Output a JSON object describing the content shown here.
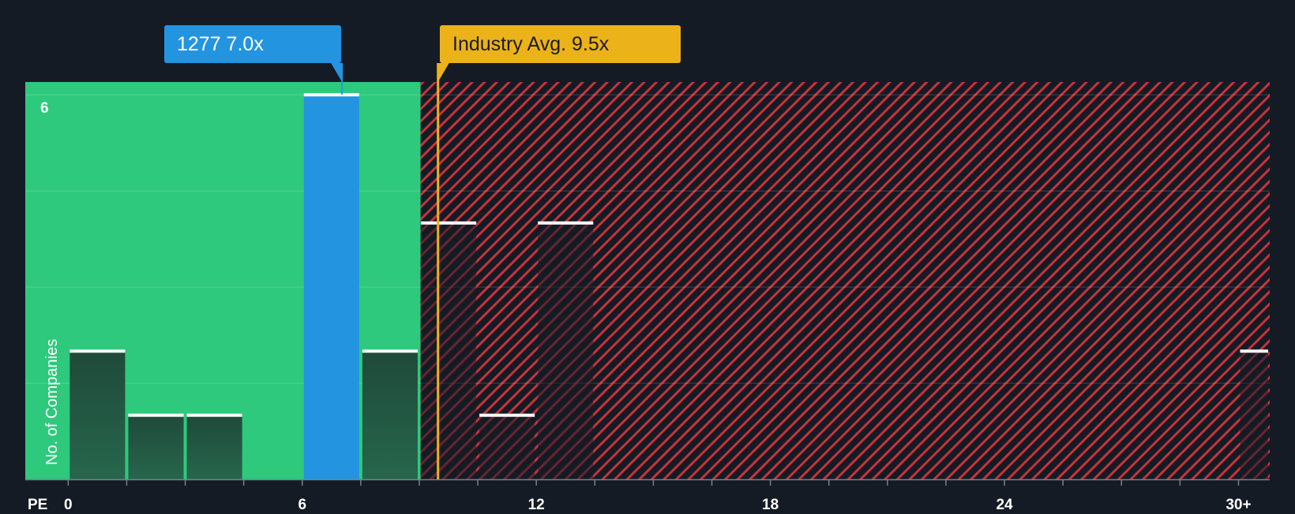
{
  "chart_data": {
    "type": "bar",
    "xlabel": "PE",
    "ylabel": "No. of Companies",
    "x_ticks": [
      "0",
      "6",
      "12",
      "18",
      "24",
      "30+"
    ],
    "x_tick_values": [
      0,
      6,
      12,
      18,
      24,
      30
    ],
    "xlim": [
      -1.1,
      30.8
    ],
    "ylim": [
      0,
      6.2
    ],
    "y_ticks": [
      0,
      1.5,
      3,
      4.5,
      6
    ],
    "y_tick_labels_shown": [
      "6"
    ],
    "bin_width": 1.5,
    "bars": [
      {
        "x_start": 0,
        "x_end": 1.5,
        "value": 2
      },
      {
        "x_start": 1.5,
        "x_end": 3,
        "value": 1
      },
      {
        "x_start": 3,
        "x_end": 4.5,
        "value": 1
      },
      {
        "x_start": 6,
        "x_end": 7.5,
        "value": 6,
        "highlight": true
      },
      {
        "x_start": 7.5,
        "x_end": 9,
        "value": 2
      },
      {
        "x_start": 9,
        "x_end": 10.5,
        "value": 4
      },
      {
        "x_start": 10.5,
        "x_end": 12,
        "value": 1
      },
      {
        "x_start": 12,
        "x_end": 13.5,
        "value": 4
      },
      {
        "x_start": 30,
        "x_end": 30.8,
        "value": 2
      }
    ],
    "company": {
      "label": "1277 7.0x",
      "value": 7.0
    },
    "industry_avg": {
      "label": "Industry Avg. 9.5x",
      "value": 9.5
    },
    "colors": {
      "background": "#151b24",
      "undervalued_zone": "#2ec97c",
      "overvalued_hatch": "#c8323a",
      "company_bar": "#2394e0",
      "industry_marker": "#ecb21a",
      "bar_fill": "#205a45",
      "bar_cap": "#ffffff"
    }
  }
}
